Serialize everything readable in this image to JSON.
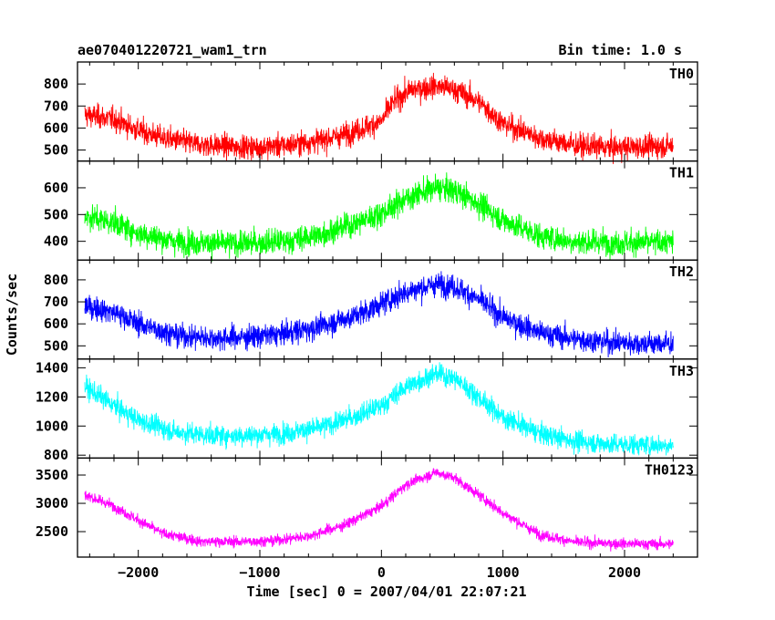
{
  "chart_data": {
    "type": "line",
    "title": "ae070401220721_wam1_trn",
    "subtitle": "Bin time: 1.0 s",
    "xlabel": "Time [sec] 0 = 2007/04/01 22:07:21",
    "ylabel": "Counts/sec",
    "xlim": [
      -2500,
      2600
    ],
    "x_ticks": [
      -2000,
      -1000,
      0,
      1000,
      2000
    ],
    "x_tick_labels": [
      "−2000",
      "−1000",
      "0",
      "1000",
      "2000"
    ],
    "x_data_range": [
      -2440,
      2400
    ],
    "grid": false,
    "panels": [
      {
        "name": "TH0",
        "color": "#ff0000",
        "ylim": [
          450,
          900
        ],
        "y_ticks": [
          500,
          600,
          700,
          800
        ],
        "y_tick_labels": [
          "500",
          "600",
          "700",
          "800"
        ],
        "noise": 45,
        "x": [
          -2440,
          -2200,
          -2000,
          -1800,
          -1500,
          -1200,
          -1000,
          -800,
          -500,
          -300,
          0,
          100,
          250,
          450,
          600,
          800,
          1000,
          1300,
          1600,
          1900,
          2200,
          2400
        ],
        "y": [
          660,
          640,
          590,
          555,
          525,
          515,
          513,
          520,
          545,
          570,
          630,
          720,
          775,
          790,
          775,
          720,
          620,
          555,
          520,
          510,
          515,
          520
        ]
      },
      {
        "name": "TH1",
        "color": "#00ff00",
        "ylim": [
          330,
          700
        ],
        "y_ticks": [
          400,
          500,
          600
        ],
        "y_tick_labels": [
          "400",
          "500",
          "600"
        ],
        "noise": 40,
        "x": [
          -2440,
          -2200,
          -2000,
          -1700,
          -1400,
          -1100,
          -800,
          -500,
          -200,
          0,
          200,
          450,
          600,
          800,
          1000,
          1300,
          1600,
          1900,
          2200,
          2400
        ],
        "y": [
          495,
          470,
          430,
          400,
          392,
          392,
          400,
          425,
          470,
          505,
          560,
          600,
          590,
          540,
          480,
          420,
          398,
          395,
          395,
          398
        ]
      },
      {
        "name": "TH2",
        "color": "#0000ff",
        "ylim": [
          440,
          890
        ],
        "y_ticks": [
          500,
          600,
          700,
          800
        ],
        "y_tick_labels": [
          "500",
          "600",
          "700",
          "800"
        ],
        "noise": 45,
        "x": [
          -2440,
          -2200,
          -2000,
          -1700,
          -1400,
          -1100,
          -800,
          -500,
          -200,
          0,
          200,
          450,
          600,
          800,
          1000,
          1300,
          1600,
          1900,
          2200,
          2400
        ],
        "y": [
          680,
          655,
          600,
          550,
          535,
          540,
          555,
          590,
          640,
          690,
          745,
          780,
          770,
          710,
          630,
          560,
          530,
          515,
          510,
          510
        ]
      },
      {
        "name": "TH3",
        "color": "#00ffff",
        "ylim": [
          780,
          1460
        ],
        "y_ticks": [
          800,
          1000,
          1200,
          1400
        ],
        "y_tick_labels": [
          "800",
          "1000",
          "1200",
          "1400"
        ],
        "noise": 60,
        "x": [
          -2440,
          -2200,
          -2000,
          -1700,
          -1400,
          -1100,
          -800,
          -500,
          -200,
          0,
          200,
          450,
          600,
          800,
          1000,
          1300,
          1600,
          1900,
          2200,
          2400
        ],
        "y": [
          1270,
          1140,
          1040,
          960,
          935,
          935,
          950,
          990,
          1070,
          1140,
          1270,
          1360,
          1330,
          1200,
          1060,
          950,
          895,
          875,
          870,
          870
        ]
      },
      {
        "name": "TH0123",
        "color": "#ff00ff",
        "ylim": [
          2050,
          3800
        ],
        "y_ticks": [
          2500,
          3000,
          3500
        ],
        "y_tick_labels": [
          "2500",
          "3000",
          "3500"
        ],
        "noise": 80,
        "x": [
          -2440,
          -2200,
          -2000,
          -1800,
          -1500,
          -1200,
          -900,
          -600,
          -300,
          0,
          200,
          450,
          600,
          800,
          1000,
          1300,
          1600,
          1900,
          2200,
          2400
        ],
        "y": [
          3150,
          2950,
          2700,
          2470,
          2330,
          2320,
          2340,
          2420,
          2620,
          2950,
          3330,
          3550,
          3450,
          3150,
          2830,
          2450,
          2310,
          2290,
          2280,
          2280
        ]
      }
    ]
  }
}
